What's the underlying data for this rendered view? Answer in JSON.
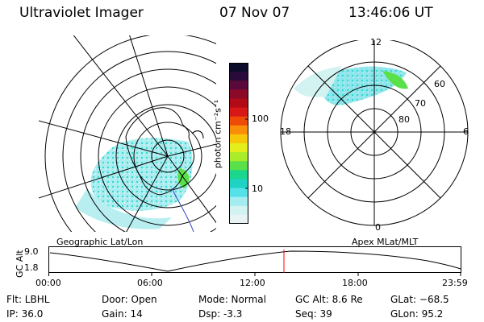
{
  "header": {
    "instrument": "Ultraviolet Imager",
    "date": "07 Nov 07",
    "time": "13:46:06 UT"
  },
  "colorbar": {
    "unit_label": "photon cm⁻²s⁻¹",
    "ticks": [
      "100",
      "10"
    ],
    "colors": [
      "#0b0b2a",
      "#2a0a3a",
      "#5a0a3a",
      "#8a0a28",
      "#b10b17",
      "#d81818",
      "#ee4a08",
      "#f98e08",
      "#f7c70a",
      "#e3ee1c",
      "#a8ec2a",
      "#5ae049",
      "#1ad78d",
      "#1ed3c4",
      "#55e1e7",
      "#a4ecef",
      "#d3f2f2",
      "#e8f4f4"
    ]
  },
  "geo_panel": {
    "label": "Geographic Lat/Lon"
  },
  "apex_panel": {
    "label": "Apex MLat/MLT",
    "mlt_labels": [
      "12",
      "18",
      "6",
      "0"
    ],
    "mlat_labels": [
      "60",
      "70",
      "80"
    ]
  },
  "timeline": {
    "axis_label": "GC Alt",
    "y_ticks": [
      "9.0",
      "1.8"
    ],
    "x_ticks": [
      "00:00",
      "06:00",
      "12:00",
      "18:00",
      "23:59"
    ],
    "marker_color": "#ff0000"
  },
  "info": {
    "flt": "Flt: LBHL",
    "ip": "IP: 36.0",
    "door": "Door: Open",
    "gain": "Gain: 14",
    "mode": "Mode: Normal",
    "dsp": "Dsp:     -3.3",
    "gc_alt": "GC Alt: 8.6 Re",
    "seq": "Seq: 39",
    "glat": "GLat: −68.5",
    "glon": "GLon:  95.2"
  }
}
